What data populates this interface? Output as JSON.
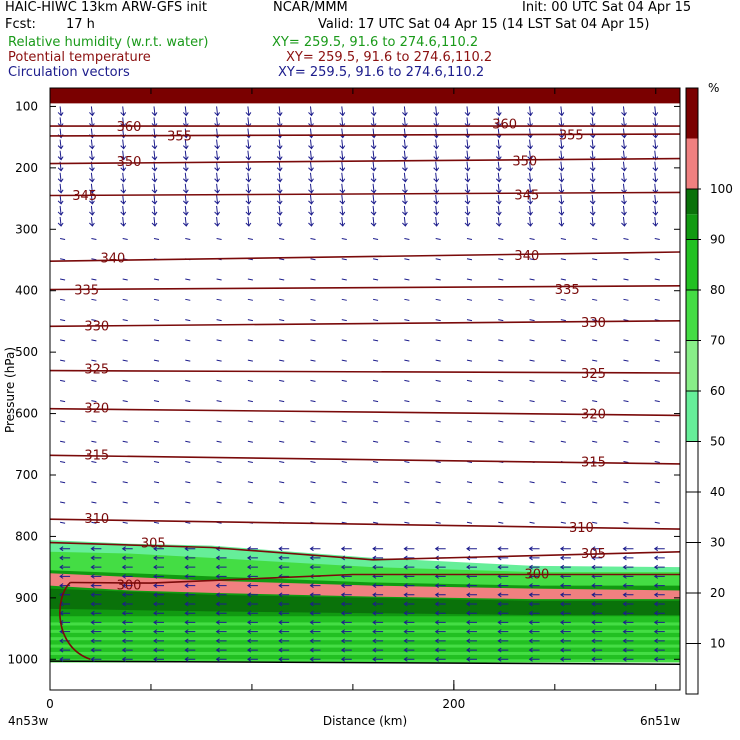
{
  "header": {
    "model": "HAIC-HIWC 13km ARW-GFS init",
    "org": "NCAR/MMM",
    "init": "Init: 00 UTC Sat 04 Apr 15",
    "fcst_label": "Fcst:",
    "fcst_value": "17 h",
    "valid": "Valid: 17 UTC Sat 04 Apr 15 (14 LST Sat 04 Apr 15)",
    "fields": [
      {
        "name": "Relative humidity (w.r.t. water)",
        "xy": "XY= 259.5, 91.6 to 274.6,110.2",
        "color": "#1a9a1a"
      },
      {
        "name": "Potential temperature",
        "xy": "XY= 259.5, 91.6 to 274.6,110.2",
        "color": "#8b1010"
      },
      {
        "name": "Circulation vectors",
        "xy": "XY= 259.5, 91.6 to 274.6,110.2",
        "color": "#1c1c8c"
      }
    ]
  },
  "chart_data": {
    "type": "cross-section",
    "ylabel": "Pressure (hPa)",
    "xlabel": "Distance (km)",
    "y_axis": "pressure, inverted",
    "ylim": [
      1050,
      70
    ],
    "xlim": [
      0,
      312
    ],
    "y_ticks": [
      100,
      200,
      300,
      400,
      500,
      600,
      700,
      800,
      900,
      1000
    ],
    "x_ticks": [
      0,
      200
    ],
    "x_tick_labels": [
      "0",
      "200"
    ],
    "left_label": "4n53w",
    "right_label": "6n51w",
    "colorbar": {
      "unit_label": "%",
      "labels": [
        10,
        20,
        30,
        40,
        50,
        60,
        70,
        80,
        90,
        100
      ],
      "bins": [
        {
          "from": 50,
          "to": 60,
          "color": "#66ee99"
        },
        {
          "from": 60,
          "to": 70,
          "color": "#88ee88"
        },
        {
          "from": 70,
          "to": 80,
          "color": "#44dd44"
        },
        {
          "from": 80,
          "to": 90,
          "color": "#22c022"
        },
        {
          "from": 90,
          "to": 95,
          "color": "#119a11"
        },
        {
          "from": 95,
          "to": 100,
          "color": "#0a720a"
        },
        {
          "from": 100,
          "to": 110,
          "color": "#f08080"
        },
        {
          "from": 110,
          "to": 120,
          "color": "#7a0000"
        }
      ]
    },
    "rh_layers": [
      {
        "color": "#7a0000",
        "top": [
          70,
          70
        ],
        "bottom": [
          95,
          95
        ]
      },
      {
        "color": "#66ee99",
        "top": [
          806,
          812,
          815,
          835,
          848,
          850
        ],
        "bottom": [
          835,
          840,
          845,
          870,
          880,
          880
        ]
      },
      {
        "color": "#44dd44",
        "top": [
          825,
          828,
          835,
          850,
          858,
          858
        ],
        "bottom": [
          860,
          868,
          872,
          888,
          895,
          895
        ]
      },
      {
        "color": "#119a11",
        "top": [
          855,
          860,
          865,
          875,
          880,
          880
        ],
        "bottom": [
          985,
          985,
          985,
          985,
          985,
          985
        ]
      },
      {
        "color": "#f08080",
        "top": [
          860,
          866,
          872,
          880,
          885,
          888
        ],
        "bottom": [
          880,
          888,
          892,
          898,
          902,
          902
        ]
      },
      {
        "color": "#0a720a",
        "top": [
          885,
          890,
          895,
          900,
          905,
          905
        ],
        "bottom": [
          918,
          920,
          922,
          925,
          928,
          928
        ]
      },
      {
        "color": "#22c022",
        "top": [
          930,
          930,
          930,
          930,
          930,
          930
        ],
        "bottom": [
          1005,
          1005,
          1005,
          1005,
          1005,
          1005
        ]
      }
    ],
    "rh_layer_x": [
      0,
      40,
      80,
      160,
      240,
      312
    ],
    "isentropes": [
      {
        "theta": 360,
        "x": [
          0,
          312
        ],
        "y": [
          132,
          132
        ]
      },
      {
        "theta": 355,
        "x": [
          0,
          312
        ],
        "y": [
          148,
          145
        ]
      },
      {
        "theta": 350,
        "x": [
          0,
          312
        ],
        "y": [
          193,
          185
        ]
      },
      {
        "theta": 345,
        "x": [
          0,
          312
        ],
        "y": [
          245,
          240
        ]
      },
      {
        "theta": 340,
        "x": [
          0,
          312
        ],
        "y": [
          352,
          337
        ]
      },
      {
        "theta": 335,
        "x": [
          0,
          312
        ],
        "y": [
          398,
          392
        ]
      },
      {
        "theta": 330,
        "x": [
          0,
          312
        ],
        "y": [
          458,
          449
        ]
      },
      {
        "theta": 325,
        "x": [
          0,
          312
        ],
        "y": [
          530,
          534
        ]
      },
      {
        "theta": 320,
        "x": [
          0,
          312
        ],
        "y": [
          592,
          603
        ]
      },
      {
        "theta": 315,
        "x": [
          0,
          312
        ],
        "y": [
          668,
          682
        ]
      },
      {
        "theta": 310,
        "x": [
          0,
          312
        ],
        "y": [
          772,
          788
        ]
      },
      {
        "theta": 305,
        "x": [
          0,
          80,
          160,
          312
        ],
        "y": [
          810,
          818,
          838,
          825
        ]
      },
      {
        "theta": 300,
        "x": [
          10,
          50,
          150,
          250,
          312
        ],
        "y": [
          875,
          876,
          862,
          862,
          862
        ]
      }
    ],
    "isentrope_labels": [
      {
        "theta": 360,
        "x": 33,
        "y": 132
      },
      {
        "theta": 360,
        "x": 219,
        "y": 128
      },
      {
        "theta": 355,
        "x": 58,
        "y": 147
      },
      {
        "theta": 355,
        "x": 252,
        "y": 146
      },
      {
        "theta": 350,
        "x": 33,
        "y": 189
      },
      {
        "theta": 350,
        "x": 229,
        "y": 188
      },
      {
        "theta": 345,
        "x": 11,
        "y": 244
      },
      {
        "theta": 345,
        "x": 230,
        "y": 243
      },
      {
        "theta": 340,
        "x": 25,
        "y": 346
      },
      {
        "theta": 340,
        "x": 230,
        "y": 342
      },
      {
        "theta": 335,
        "x": 12,
        "y": 398
      },
      {
        "theta": 335,
        "x": 250,
        "y": 397
      },
      {
        "theta": 330,
        "x": 17,
        "y": 457
      },
      {
        "theta": 330,
        "x": 263,
        "y": 451
      },
      {
        "theta": 325,
        "x": 17,
        "y": 527
      },
      {
        "theta": 325,
        "x": 263,
        "y": 534
      },
      {
        "theta": 320,
        "x": 17,
        "y": 590
      },
      {
        "theta": 320,
        "x": 263,
        "y": 600
      },
      {
        "theta": 315,
        "x": 17,
        "y": 667
      },
      {
        "theta": 315,
        "x": 263,
        "y": 678
      },
      {
        "theta": 310,
        "x": 17,
        "y": 770
      },
      {
        "theta": 310,
        "x": 257,
        "y": 785
      },
      {
        "theta": 305,
        "x": 45,
        "y": 810
      },
      {
        "theta": 305,
        "x": 263,
        "y": 827
      },
      {
        "theta": 300,
        "x": 33,
        "y": 878
      },
      {
        "theta": 300,
        "x": 235,
        "y": 860
      }
    ],
    "vectors": {
      "upper": {
        "p_top": 100,
        "p_bottom": 290,
        "direction": "down",
        "color": "#1c1c8c"
      },
      "middle": {
        "p_top": 300,
        "p_bottom": 800,
        "direction": "right",
        "color": "#1c1c8c"
      },
      "lower": {
        "p_top": 810,
        "p_bottom": 1000,
        "direction": "left",
        "color": "#1c1c8c"
      }
    },
    "colors": {
      "isentrope": "#7a0a0a",
      "axis": "#000000",
      "ground": "#000000"
    }
  }
}
